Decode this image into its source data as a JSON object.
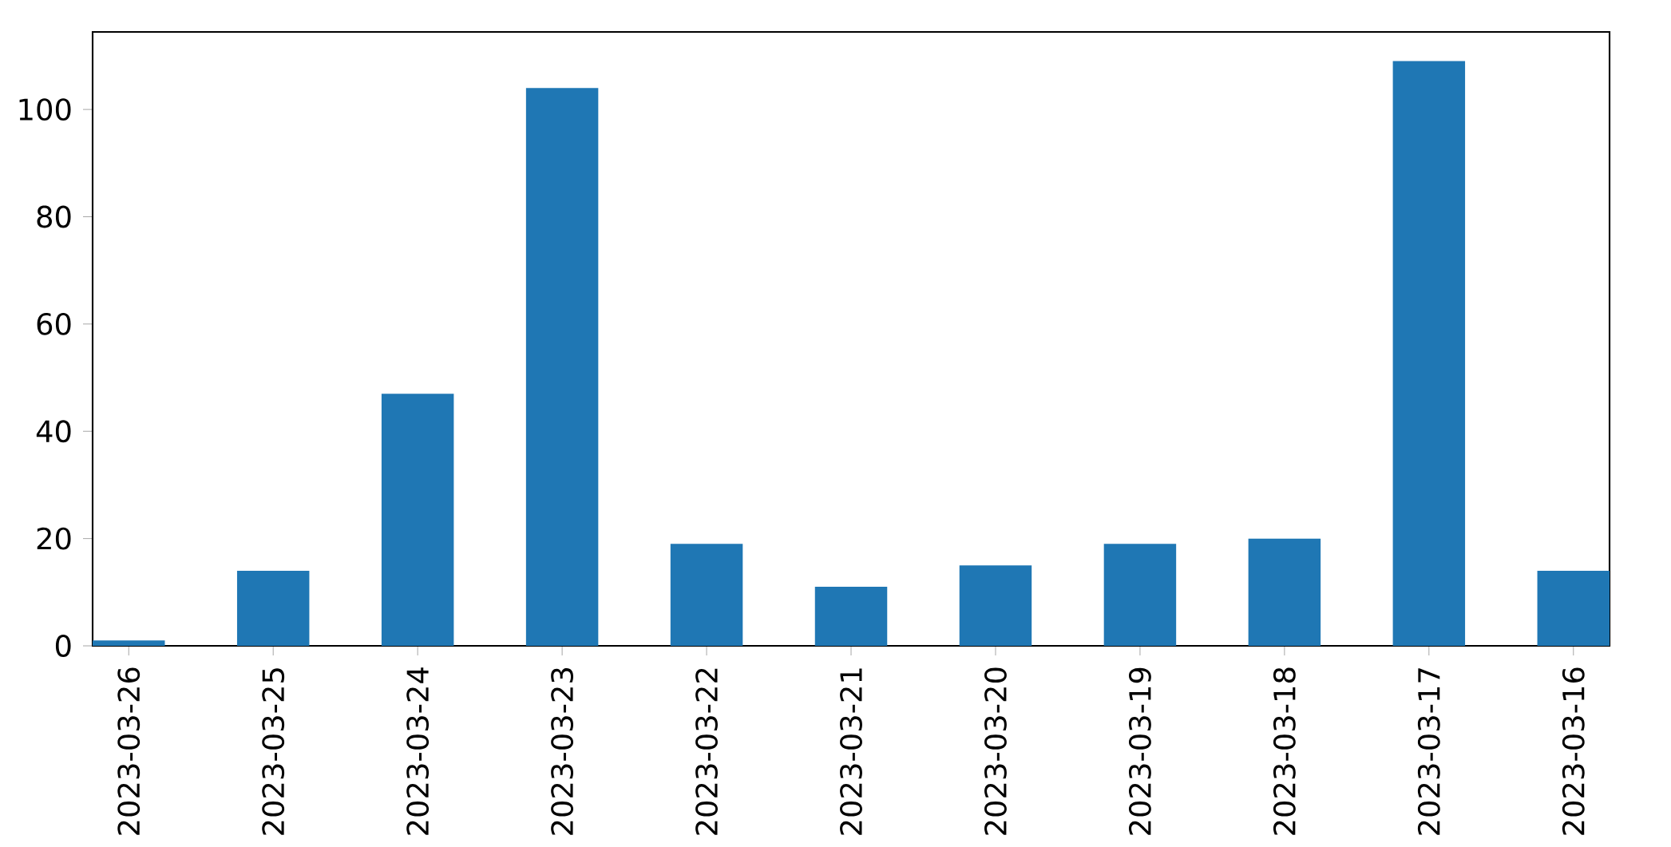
{
  "chart_data": {
    "type": "bar",
    "categories": [
      "2023-03-26",
      "2023-03-25",
      "2023-03-24",
      "2023-03-23",
      "2023-03-22",
      "2023-03-21",
      "2023-03-20",
      "2023-03-19",
      "2023-03-18",
      "2023-03-17",
      "2023-03-16"
    ],
    "values": [
      1,
      14,
      47,
      104,
      19,
      11,
      15,
      19,
      20,
      109,
      14
    ],
    "color": "#1f77b4",
    "ylim": [
      0,
      114.45
    ],
    "yticks": [
      0,
      20,
      40,
      60,
      80,
      100
    ]
  }
}
